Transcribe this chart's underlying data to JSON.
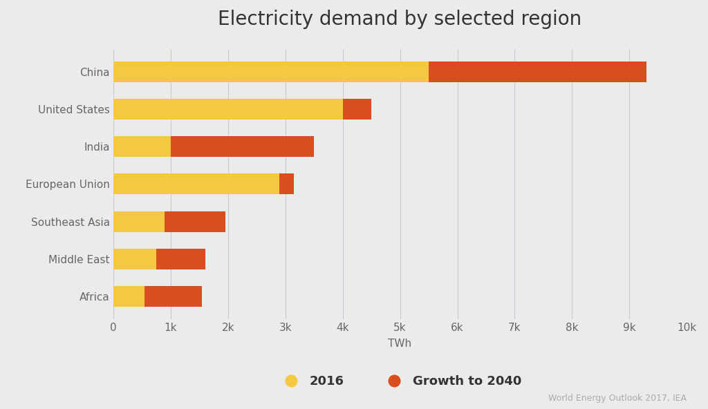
{
  "title": "Electricity demand by selected region",
  "categories": [
    "China",
    "United States",
    "India",
    "European Union",
    "Southeast Asia",
    "Middle East",
    "Africa"
  ],
  "values_2016": [
    5500,
    4000,
    1000,
    2900,
    900,
    750,
    550
  ],
  "values_growth": [
    3800,
    500,
    2500,
    250,
    1050,
    850,
    1000
  ],
  "color_2016": "#F5C842",
  "color_growth": "#D94E1F",
  "xlabel": "TWh",
  "xlim": [
    0,
    10000
  ],
  "xtick_labels": [
    "0",
    "1k",
    "2k",
    "3k",
    "4k",
    "5k",
    "6k",
    "7k",
    "8k",
    "9k",
    "10k"
  ],
  "xtick_values": [
    0,
    1000,
    2000,
    3000,
    4000,
    5000,
    6000,
    7000,
    8000,
    9000,
    10000
  ],
  "background_color": "#ebebeb",
  "plot_background_color": "#ebebeb",
  "title_fontsize": 20,
  "axis_label_fontsize": 11,
  "tick_fontsize": 11,
  "legend_label_2016": "2016",
  "legend_label_growth": "Growth to 2040",
  "source_text": "World Energy Outlook 2017, IEA",
  "bar_height": 0.55
}
